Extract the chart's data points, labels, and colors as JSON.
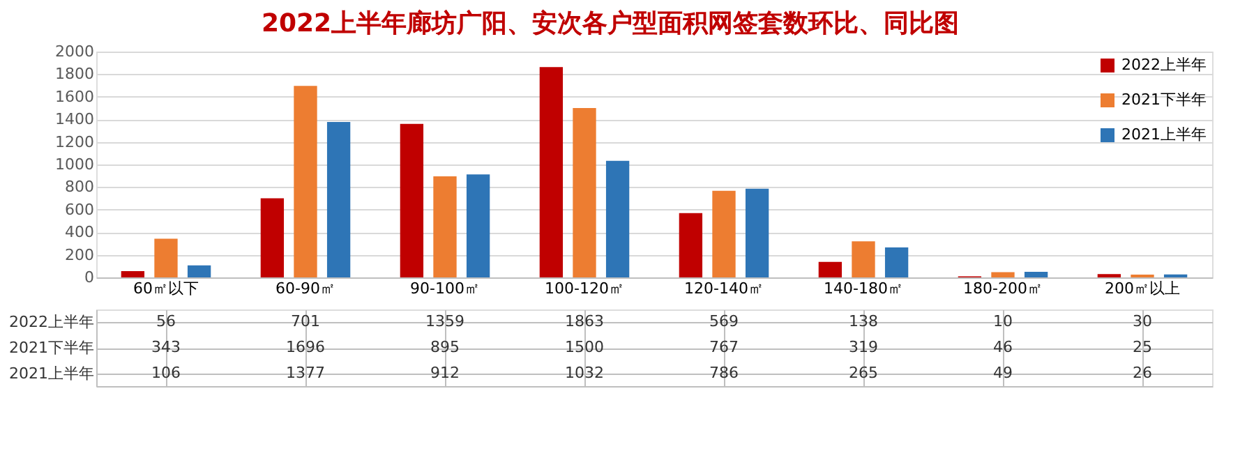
{
  "chart_data": {
    "type": "bar",
    "title": "2022上半年廊坊广阳、安次各户型面积网签套数环比、同比图",
    "categories": [
      "60㎡以下",
      "60-90㎡",
      "90-100㎡",
      "100-120㎡",
      "120-140㎡",
      "140-180㎡",
      "180-200㎡",
      "200㎡以上"
    ],
    "series": [
      {
        "name": "2022上半年",
        "color": "#c00000",
        "values": [
          56,
          701,
          1359,
          1863,
          569,
          138,
          10,
          30
        ]
      },
      {
        "name": "2021下半年",
        "color": "#ed7d31",
        "values": [
          343,
          1696,
          895,
          1500,
          767,
          319,
          46,
          25
        ]
      },
      {
        "name": "2021上半年",
        "color": "#2e75b6",
        "values": [
          106,
          1377,
          912,
          1032,
          786,
          265,
          49,
          26
        ]
      }
    ],
    "ylim": [
      0,
      2000
    ],
    "yticks": [
      0,
      200,
      400,
      600,
      800,
      1000,
      1200,
      1400,
      1600,
      1800,
      2000
    ],
    "grid": "y",
    "legend": "top right",
    "data_labels": true
  }
}
